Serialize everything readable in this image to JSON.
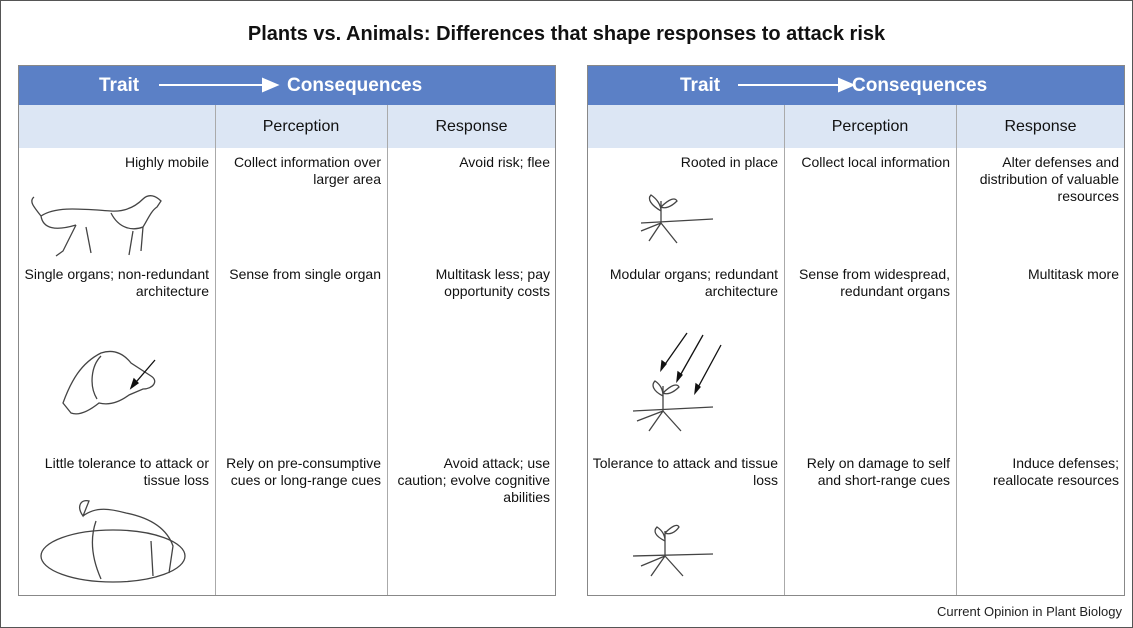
{
  "title": "Plants vs. Animals: Differences that shape responses to attack risk",
  "panels": [
    {
      "header": {
        "trait": "Trait",
        "consequences": "Consequences"
      },
      "columns": [
        "Perception",
        "Response"
      ],
      "rows": [
        [
          "Highly mobile",
          "Collect information over larger area",
          "Avoid risk; flee"
        ],
        [
          "Single organs; non-redundant architecture",
          "Sense from single organ",
          "Multitask less; pay opportunity costs"
        ],
        [
          "Little tolerance to attack or tissue loss",
          "Rely on pre-consumptive cues or long-range cues",
          "Avoid attack; use caution; evolve cognitive abilities"
        ]
      ]
    },
    {
      "header": {
        "trait": "Trait",
        "consequences": "Consequences"
      },
      "columns": [
        "Perception",
        "Response"
      ],
      "rows": [
        [
          "Rooted in place",
          "Collect local information",
          "Alter defenses and distribution of valuable resources"
        ],
        [
          "Modular organs; redundant architecture",
          "Sense from widespread, redundant organs",
          "Multitask more"
        ],
        [
          "Tolerance to attack and tissue loss",
          "Rely on damage to self and short-range cues",
          "Induce defenses; reallocate resources"
        ]
      ]
    }
  ],
  "footer": "Current Opinion in Plant Biology"
}
